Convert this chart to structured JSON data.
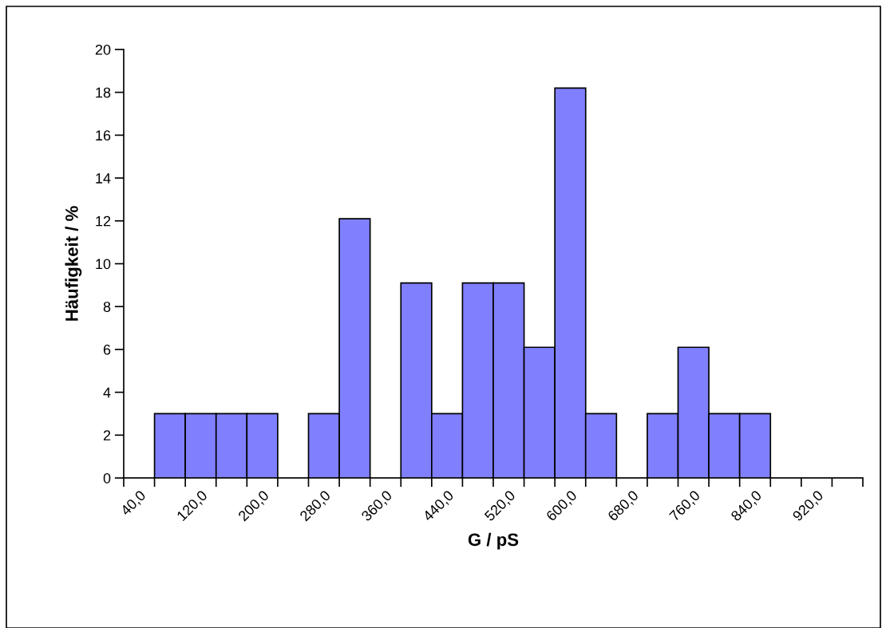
{
  "chart_data": {
    "type": "bar",
    "xlabel": "G / pS",
    "ylabel": "Häufigkeit / %",
    "categories": [
      "40,0",
      null,
      "120,0",
      null,
      "200,0",
      null,
      "280,0",
      null,
      "360,0",
      null,
      "440,0",
      null,
      "520,0",
      null,
      "600,0",
      null,
      "680,0",
      null,
      "760,0",
      null,
      "840,0",
      null,
      "920,0",
      null
    ],
    "values": [
      0,
      3.0,
      3.0,
      3.0,
      3.0,
      0,
      3.0,
      12.1,
      0,
      9.1,
      3.0,
      9.1,
      9.1,
      6.1,
      18.2,
      3.0,
      0,
      3.0,
      6.1,
      3.0,
      3.0,
      0,
      0,
      0
    ],
    "color": "#8080ff",
    "ylim": [
      0,
      20
    ],
    "yticks": [
      0,
      2,
      4,
      6,
      8,
      10,
      12,
      14,
      16,
      18,
      20
    ],
    "grid": false,
    "legend": false
  }
}
